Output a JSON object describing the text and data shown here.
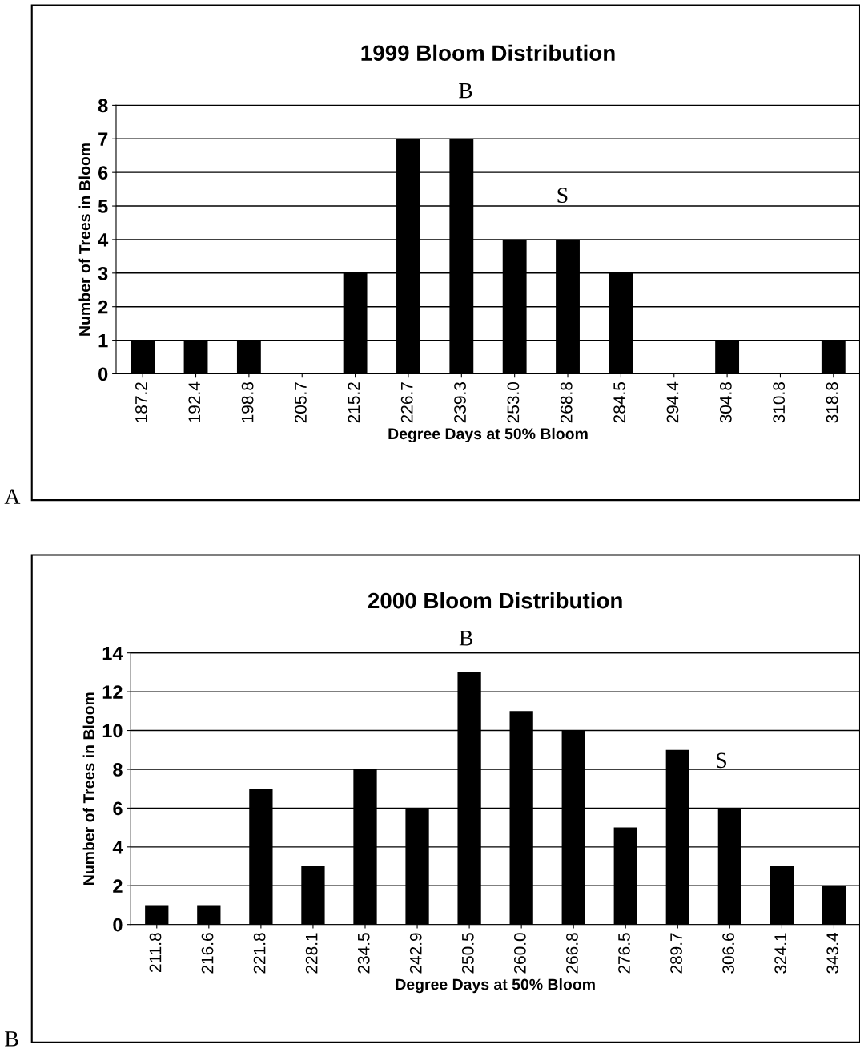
{
  "chart_data": [
    {
      "type": "bar",
      "title": "1999 Bloom Distribution",
      "xlabel": "Degree Days at 50% Bloom",
      "ylabel": "Number of Trees in Bloom",
      "categories": [
        "187.2",
        "192.4",
        "198.8",
        "205.7",
        "215.2",
        "226.7",
        "239.3",
        "253.0",
        "268.8",
        "284.5",
        "294.4",
        "304.8",
        "310.8",
        "318.8"
      ],
      "values": [
        1,
        1,
        1,
        0,
        3,
        7,
        7,
        4,
        4,
        3,
        0,
        1,
        0,
        1
      ],
      "color": "#000000",
      "ylim": [
        0,
        8
      ],
      "yticks": [
        0,
        1,
        2,
        3,
        4,
        5,
        6,
        7,
        8
      ],
      "grid": "y",
      "annotations": [
        "B",
        "S",
        "A"
      ]
    },
    {
      "type": "bar",
      "title": "2000 Bloom Distribution",
      "xlabel": "Degree Days at 50% Bloom",
      "ylabel": "Number of Trees in Bloom",
      "categories": [
        "211.8",
        "216.6",
        "221.8",
        "228.1",
        "234.5",
        "242.9",
        "250.5",
        "260.0",
        "266.8",
        "276.5",
        "289.7",
        "306.6",
        "324.1",
        "343.4"
      ],
      "values": [
        1,
        1,
        7,
        3,
        8,
        6,
        13,
        11,
        10,
        5,
        9,
        6,
        3,
        2
      ],
      "color": "#000000",
      "ylim": [
        0,
        14
      ],
      "yticks": [
        0,
        2,
        4,
        6,
        8,
        10,
        12,
        14
      ],
      "grid": "y",
      "annotations": [
        "B",
        "S",
        "B"
      ]
    }
  ]
}
